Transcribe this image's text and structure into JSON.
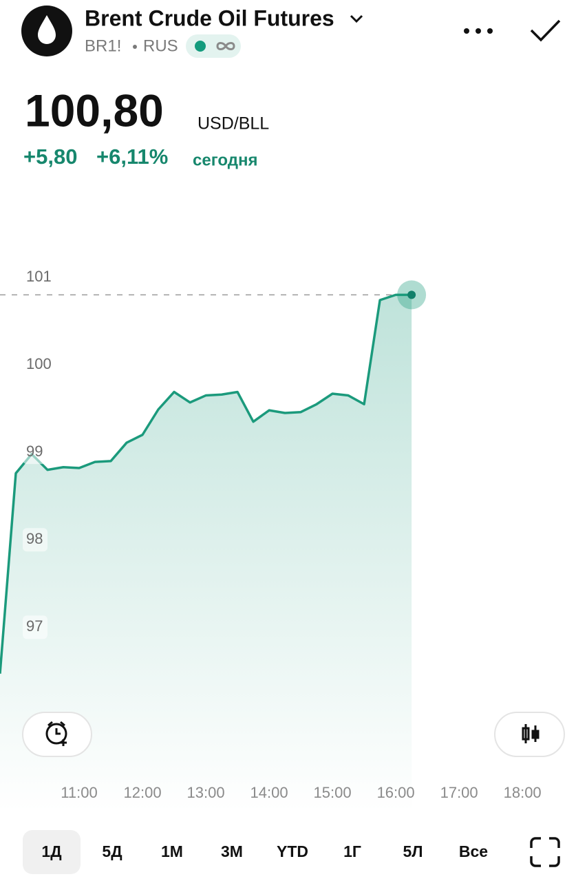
{
  "header": {
    "title": "Brent Crude Oil Futures",
    "symbol": "BR1!",
    "exchange": "RUS",
    "price": "100,80",
    "unit": "USD/BLL",
    "change": "+5,80",
    "change_percent": "+6,11%",
    "period": "сегодня"
  },
  "chart_data": {
    "type": "area",
    "x": [
      9.75,
      10,
      10.25,
      10.5,
      10.75,
      11,
      11.25,
      11.5,
      11.75,
      12,
      12.25,
      12.5,
      12.75,
      13,
      13.25,
      13.5,
      13.75,
      14,
      14.25,
      14.5,
      14.75,
      15,
      15.25,
      15.5,
      15.75,
      16,
      16.25
    ],
    "values": [
      96.47,
      98.76,
      98.98,
      98.8,
      98.83,
      98.82,
      98.89,
      98.9,
      99.11,
      99.2,
      99.49,
      99.69,
      99.57,
      99.65,
      99.66,
      99.69,
      99.35,
      99.48,
      99.45,
      99.46,
      99.55,
      99.67,
      99.65,
      99.55,
      100.74,
      100.8,
      100.8
    ],
    "color": "#1b9a7c",
    "xlim": [
      9.75,
      19.02
    ],
    "ylim": [
      95.28,
      101.81
    ],
    "xticks": [
      {
        "value": 11,
        "label": "11:00"
      },
      {
        "value": 12,
        "label": "12:00"
      },
      {
        "value": 13,
        "label": "13:00"
      },
      {
        "value": 14,
        "label": "14:00"
      },
      {
        "value": 15,
        "label": "15:00"
      },
      {
        "value": 16,
        "label": "16:00"
      },
      {
        "value": 17,
        "label": "17:00"
      },
      {
        "value": 18,
        "label": "18:00"
      }
    ],
    "yticks": [
      97,
      98,
      99,
      100,
      101
    ]
  },
  "ranges": {
    "items": [
      "1Д",
      "5Д",
      "1М",
      "3М",
      "YTD",
      "1Г",
      "5Л",
      "Все"
    ],
    "selected": 0
  }
}
